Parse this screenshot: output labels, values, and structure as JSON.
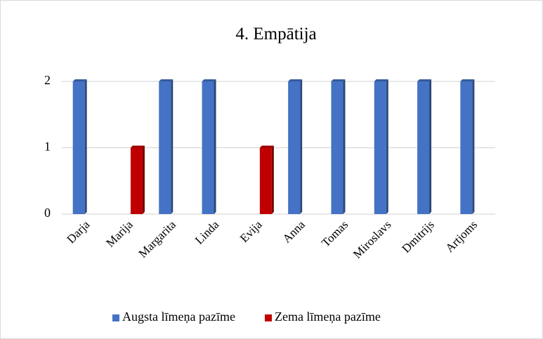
{
  "chart_data": {
    "type": "bar",
    "title": "4. Empātija",
    "categories": [
      "Darja",
      "Marija",
      "Margarita",
      "Linda",
      "Evija",
      "Anna",
      "Tomas",
      "Miroslavs",
      "Dmitrijs",
      "Artjoms"
    ],
    "series": [
      {
        "name": "Augsta līmeņa pazīme",
        "color": "#4472c4",
        "values": [
          2,
          null,
          2,
          2,
          null,
          2,
          2,
          2,
          2,
          2
        ]
      },
      {
        "name": "Zema līmeņa pazīme",
        "color": "#c00000",
        "values": [
          null,
          1,
          null,
          null,
          1,
          null,
          null,
          null,
          null,
          null
        ]
      }
    ],
    "ylim": [
      0,
      2
    ],
    "yticks": [
      0,
      1,
      2
    ],
    "grid": true,
    "legend": "bottom"
  }
}
